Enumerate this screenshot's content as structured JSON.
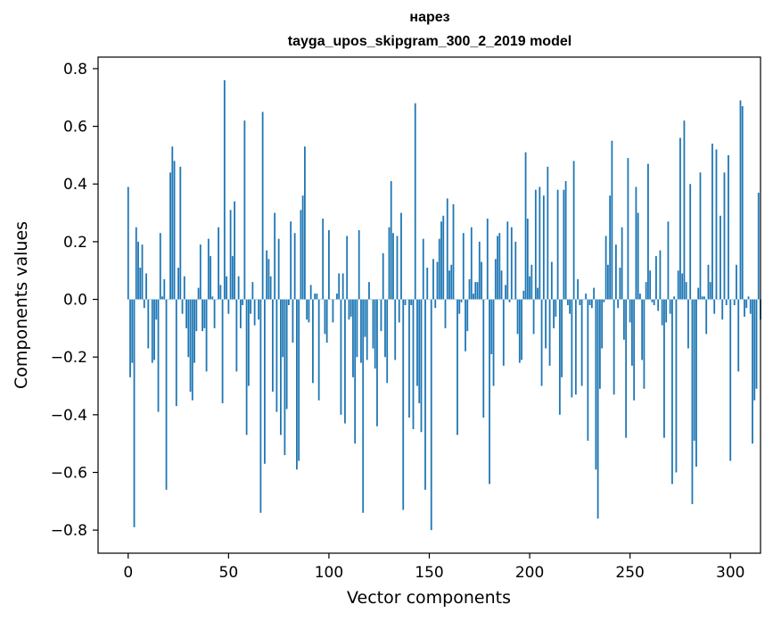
{
  "chart_data": {
    "type": "bar",
    "title": "нарез",
    "subtitle": "tayga_upos_skipgram_300_2_2019 model",
    "xlabel": "Vector components",
    "ylabel": "Components values",
    "xlim": [
      -15,
      315
    ],
    "ylim": [
      -0.88,
      0.84
    ],
    "x_ticks": [
      0,
      50,
      100,
      150,
      200,
      250,
      300
    ],
    "y_ticks": [
      -0.8,
      -0.6,
      -0.4,
      -0.2,
      0.0,
      0.2,
      0.4,
      0.6,
      0.8
    ],
    "y_tick_labels": [
      "−0.8",
      "−0.6",
      "−0.4",
      "−0.2",
      "0.0",
      "0.2",
      "0.4",
      "0.6",
      "0.8"
    ],
    "x_tick_labels": [
      "0",
      "50",
      "100",
      "150",
      "200",
      "250",
      "300"
    ],
    "bar_color": "#1f77b4",
    "values": [
      0.39,
      -0.27,
      -0.22,
      -0.79,
      0.25,
      0.2,
      0.11,
      0.19,
      -0.03,
      0.09,
      -0.17,
      0.0,
      -0.22,
      -0.21,
      -0.07,
      -0.39,
      0.23,
      0.01,
      0.07,
      -0.66,
      0.0,
      0.44,
      0.53,
      0.48,
      -0.37,
      0.11,
      0.46,
      -0.05,
      0.08,
      -0.1,
      -0.2,
      -0.32,
      -0.35,
      -0.22,
      -0.11,
      0.04,
      0.19,
      -0.11,
      -0.1,
      -0.25,
      0.21,
      0.15,
      0.01,
      -0.1,
      0.0,
      0.25,
      0.05,
      -0.36,
      0.76,
      0.08,
      -0.05,
      0.31,
      0.15,
      0.34,
      -0.25,
      0.08,
      -0.1,
      -0.02,
      0.62,
      -0.47,
      -0.3,
      -0.05,
      0.06,
      -0.09,
      0.0,
      -0.07,
      -0.74,
      0.65,
      -0.57,
      0.17,
      0.14,
      0.08,
      -0.32,
      0.3,
      -0.39,
      0.21,
      -0.47,
      -0.2,
      -0.54,
      -0.38,
      -0.02,
      0.27,
      -0.15,
      0.23,
      -0.59,
      -0.56,
      0.31,
      0.36,
      0.53,
      -0.07,
      -0.08,
      0.05,
      -0.29,
      0.02,
      0.02,
      -0.35,
      0.0,
      0.28,
      -0.12,
      -0.15,
      0.24,
      0.0,
      -0.08,
      0.0,
      0.02,
      0.09,
      -0.4,
      0.09,
      -0.43,
      0.22,
      -0.07,
      -0.06,
      -0.27,
      -0.5,
      -0.2,
      0.24,
      -0.22,
      -0.74,
      -0.13,
      -0.21,
      0.06,
      0.0,
      -0.17,
      -0.24,
      -0.44,
      0.0,
      -0.11,
      0.16,
      -0.2,
      -0.29,
      0.25,
      0.41,
      0.23,
      -0.21,
      0.22,
      -0.08,
      0.3,
      -0.73,
      -0.02,
      0.0,
      -0.41,
      -0.02,
      -0.45,
      0.68,
      -0.3,
      -0.36,
      -0.46,
      0.21,
      -0.66,
      0.11,
      0.0,
      -0.8,
      0.14,
      -0.03,
      0.13,
      0.21,
      0.27,
      0.29,
      -0.1,
      0.35,
      0.1,
      0.12,
      0.33,
      0.0,
      -0.47,
      -0.05,
      -0.01,
      0.23,
      -0.18,
      -0.11,
      0.07,
      0.25,
      0.02,
      0.06,
      0.06,
      0.2,
      0.13,
      -0.41,
      0.0,
      0.28,
      -0.64,
      -0.19,
      -0.3,
      0.14,
      0.22,
      0.23,
      0.1,
      -0.23,
      0.05,
      0.27,
      -0.01,
      0.25,
      0.0,
      0.2,
      -0.12,
      -0.22,
      -0.21,
      0.03,
      0.51,
      0.28,
      0.08,
      0.12,
      -0.12,
      0.38,
      0.04,
      0.39,
      -0.3,
      0.36,
      -0.17,
      0.46,
      -0.23,
      0.13,
      -0.1,
      -0.06,
      0.38,
      -0.4,
      -0.27,
      0.38,
      0.41,
      -0.02,
      -0.05,
      -0.34,
      0.48,
      -0.33,
      0.07,
      -0.02,
      -0.3,
      0.0,
      0.02,
      -0.49,
      -0.02,
      -0.03,
      0.04,
      -0.59,
      -0.76,
      -0.31,
      -0.17,
      -0.01,
      0.22,
      0.12,
      0.36,
      0.55,
      -0.33,
      0.19,
      -0.03,
      0.11,
      0.25,
      -0.14,
      -0.48,
      0.49,
      -0.08,
      -0.23,
      -0.35,
      0.39,
      0.3,
      0.02,
      -0.21,
      -0.31,
      0.06,
      0.47,
      0.1,
      -0.01,
      -0.02,
      0.15,
      -0.04,
      0.17,
      -0.09,
      -0.48,
      -0.08,
      0.27,
      -0.05,
      -0.64,
      0.01,
      -0.6,
      0.1,
      0.56,
      0.09,
      0.62,
      0.06,
      -0.17,
      0.4,
      -0.71,
      -0.49,
      -0.58,
      0.04,
      0.44,
      0.01,
      0.01,
      -0.12,
      0.12,
      0.06,
      0.54,
      -0.05,
      0.52,
      0.0,
      0.29,
      -0.07,
      0.44,
      -0.02,
      0.5,
      -0.56,
      0.0,
      -0.02,
      0.12,
      -0.25,
      0.69,
      0.67,
      -0.06,
      -0.03,
      0.01,
      -0.05,
      -0.5,
      -0.35,
      -0.31,
      0.37,
      -0.07
    ]
  }
}
